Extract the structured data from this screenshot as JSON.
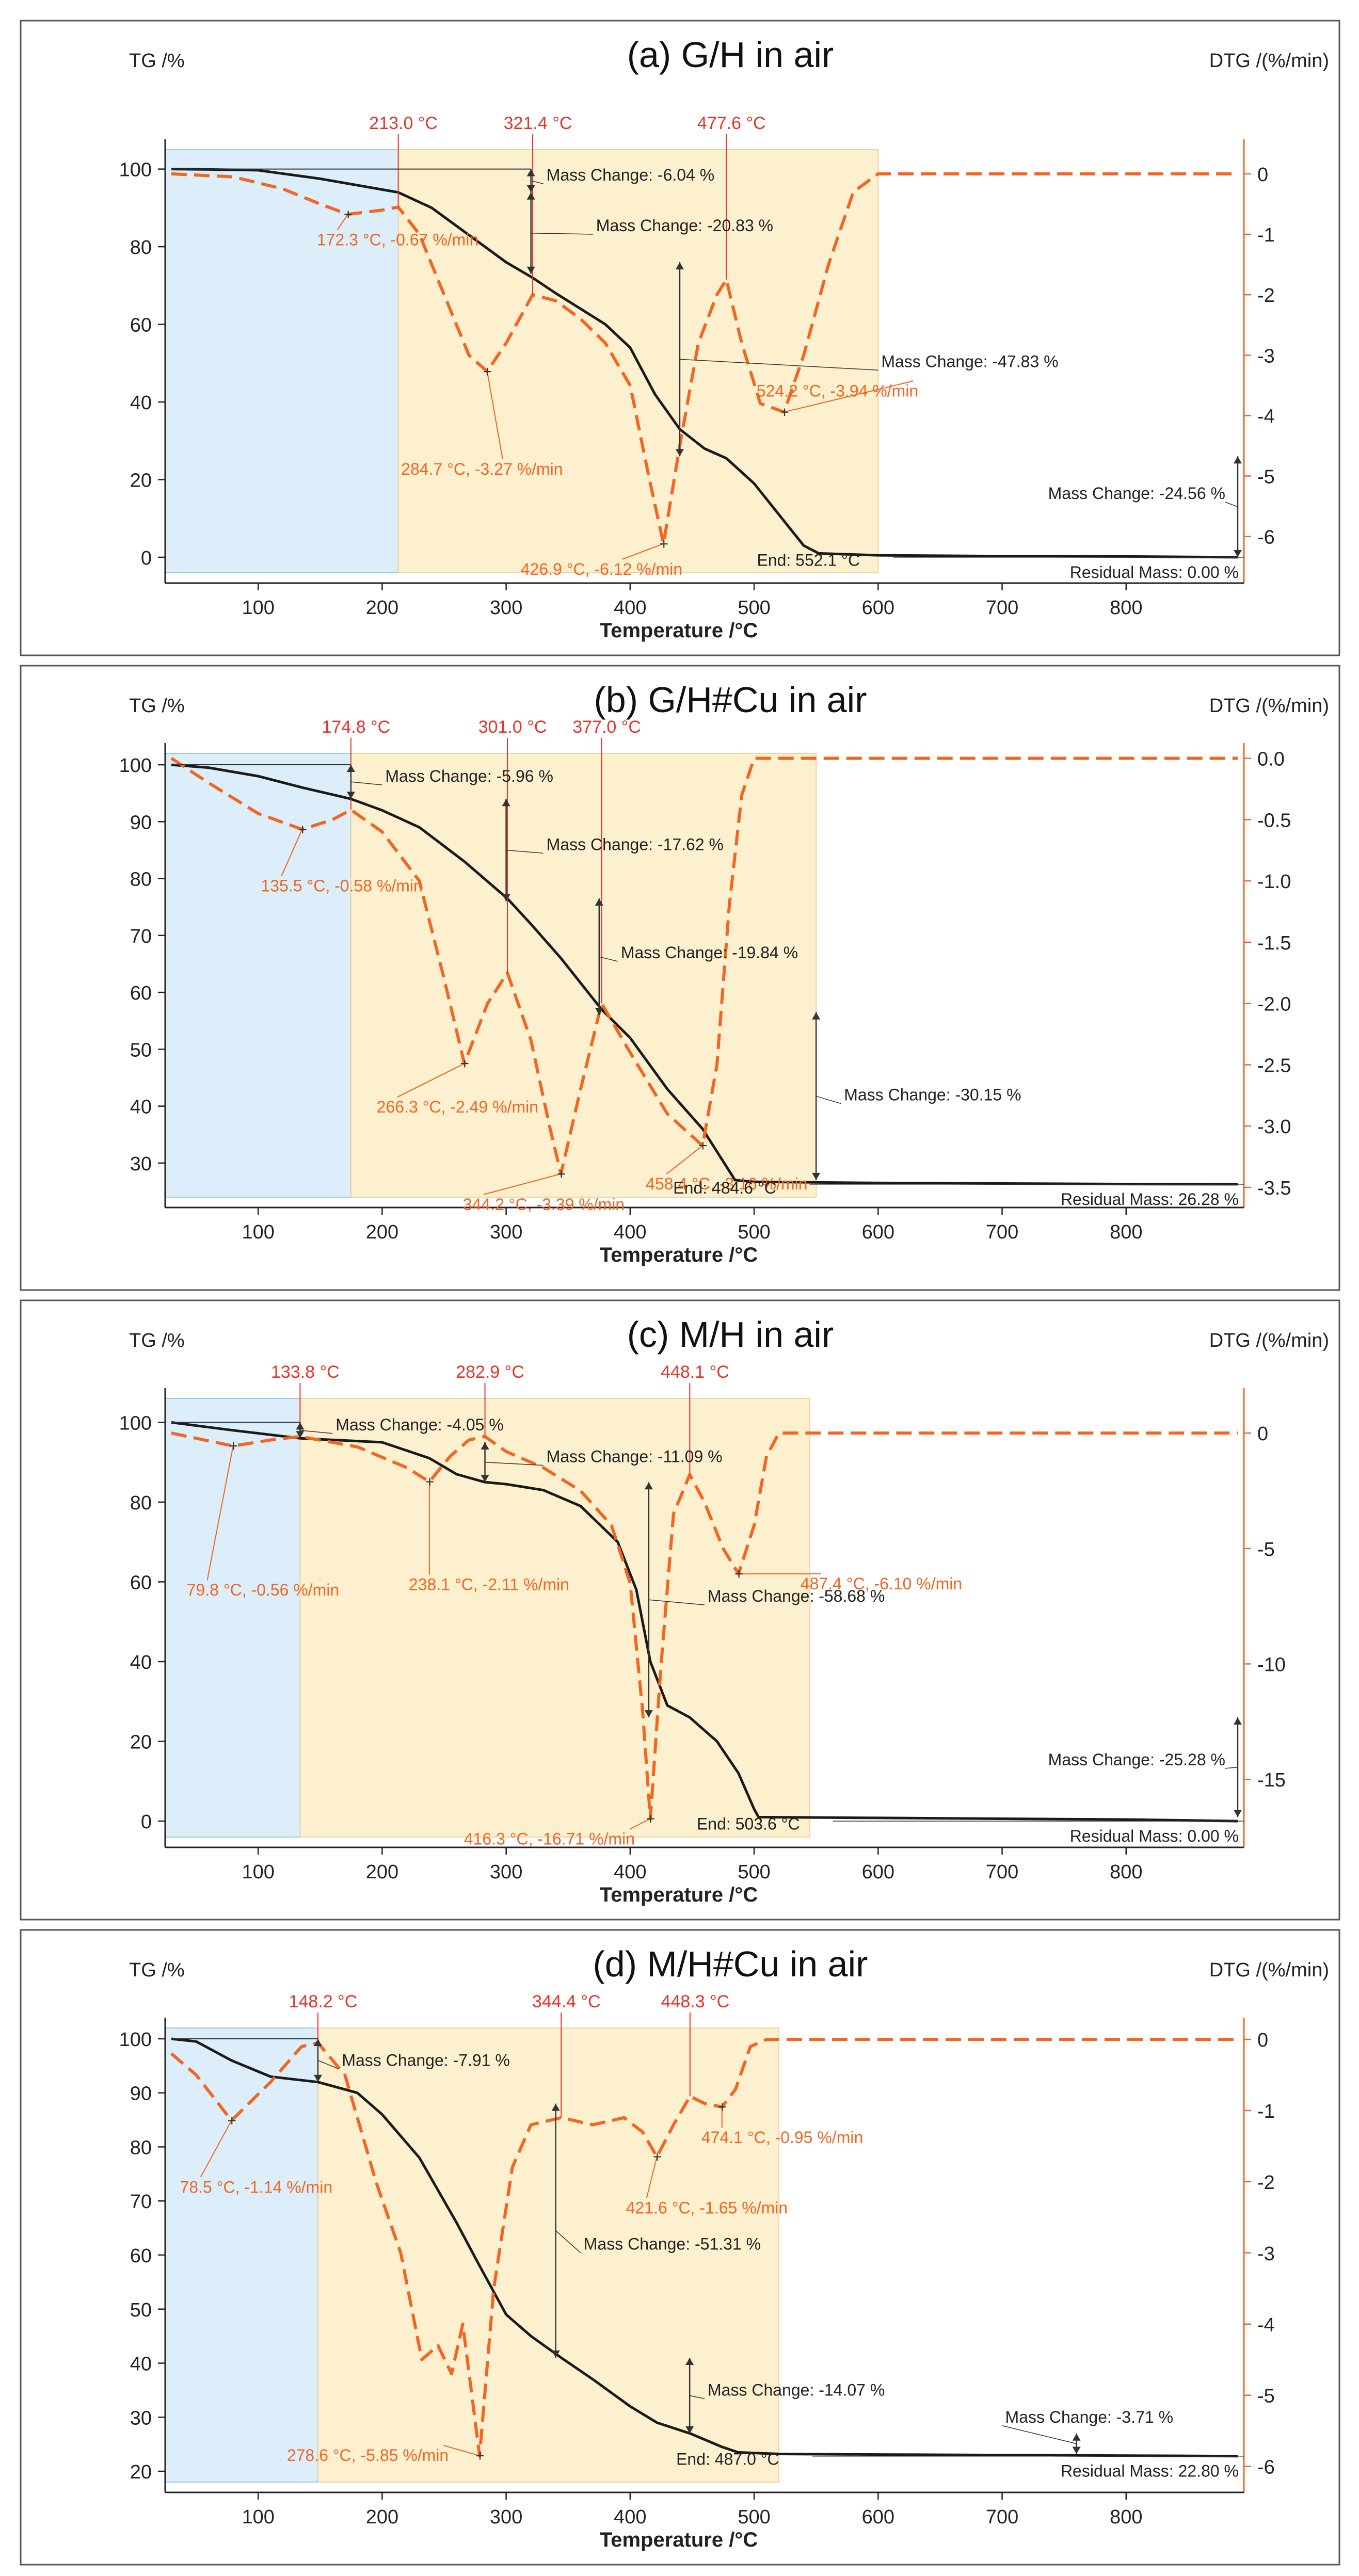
{
  "figure": {
    "axis_title_x": "Temperature /°C",
    "axis_title_tg": "TG /%",
    "axis_title_dtg": "DTG /(%/min)"
  },
  "colors": {
    "tg": "#1a1a1a",
    "dtg": "#f26522",
    "stage1": "#dbeefa",
    "stage2": "#fdf0cf",
    "label": "#f26522",
    "annotation_text": "#222222",
    "frame": "#555555"
  },
  "chart_data": [
    {
      "type": "line",
      "panel": "a",
      "title": "(a) G/H in air",
      "xlabel": "Temperature /°C",
      "ylabel": "TG /%",
      "y2label": "DTG /(%/min)",
      "xlim": [
        25,
        895
      ],
      "ylim": [
        -4,
        105
      ],
      "y2lim": [
        -6.6,
        0.4
      ],
      "xticks": [
        100,
        200,
        300,
        400,
        500,
        600,
        700,
        800
      ],
      "yticks": [
        0,
        20,
        40,
        60,
        80,
        100
      ],
      "y2ticks": [
        0,
        -1,
        -2,
        -3,
        -4,
        -5,
        -6
      ],
      "stages": [
        [
          25,
          213
        ],
        [
          213,
          600
        ]
      ],
      "series": [
        {
          "name": "TG",
          "axis": "left",
          "x": [
            30,
            60,
            100,
            150,
            213,
            240,
            270,
            300,
            321.4,
            340,
            360,
            380,
            400,
            420,
            440,
            460,
            477.6,
            500,
            520,
            540,
            552.1,
            600,
            700,
            800,
            890
          ],
          "y": [
            100,
            99.9,
            99.7,
            97.5,
            94,
            90,
            83,
            76,
            72,
            68,
            64,
            60,
            54,
            42,
            33,
            28,
            25.5,
            19,
            11,
            3,
            1,
            0.5,
            0.3,
            0.2,
            0
          ]
        },
        {
          "name": "DTG",
          "axis": "right",
          "dashed": true,
          "x": [
            30,
            80,
            120,
            150,
            172.3,
            200,
            213,
            230,
            250,
            270,
            284.7,
            300,
            321.4,
            340,
            360,
            380,
            400,
            415,
            426.9,
            440,
            455,
            470,
            477.6,
            490,
            505,
            524.2,
            540,
            560,
            580,
            600,
            700,
            800,
            890
          ],
          "y": [
            0,
            -0.05,
            -0.25,
            -0.5,
            -0.67,
            -0.6,
            -0.55,
            -1.0,
            -2.0,
            -3.0,
            -3.27,
            -2.8,
            -2.0,
            -2.1,
            -2.4,
            -2.8,
            -3.5,
            -5.0,
            -6.12,
            -4.5,
            -2.8,
            -2.0,
            -1.75,
            -2.8,
            -3.8,
            -3.94,
            -3.0,
            -1.5,
            -0.3,
            0,
            0,
            0,
            0
          ]
        }
      ],
      "annotations": {
        "peak_labels": [
          "213.0 °C",
          "321.4 °C",
          "477.6 °C"
        ],
        "dtg_labels": [
          "172.3 °C, -0.67 %/min",
          "284.7 °C, -3.27 %/min",
          "426.9 °C, -6.12 %/min",
          "524.2 °C, -3.94 %/min"
        ],
        "mass_changes": [
          "Mass Change: -6.04 %",
          "Mass Change: -20.83 %",
          "Mass Change: -47.83 %",
          "Mass Change: -24.56 %"
        ],
        "end": "End: 552.1 °C",
        "residual": "Residual Mass: 0.00 %"
      }
    },
    {
      "type": "line",
      "panel": "b",
      "title": "(b) G/H#Cu in air",
      "xlabel": "Temperature /°C",
      "ylabel": "TG /%",
      "y2label": "DTG /(%/min)",
      "xlim": [
        25,
        895
      ],
      "ylim": [
        24,
        102
      ],
      "y2lim": [
        -3.58,
        0.04
      ],
      "xticks": [
        100,
        200,
        300,
        400,
        500,
        600,
        700,
        800
      ],
      "yticks": [
        30,
        40,
        50,
        60,
        70,
        80,
        90,
        100
      ],
      "y2ticks": [
        "0.0",
        "-0.5",
        "-1.0",
        "-1.5",
        "-2.0",
        "-2.5",
        "-3.0",
        "-3.5"
      ],
      "stages": [
        [
          25,
          174.8
        ],
        [
          174.8,
          550
        ]
      ],
      "series": [
        {
          "name": "TG",
          "axis": "left",
          "x": [
            30,
            60,
            100,
            135.5,
            174.8,
            200,
            230,
            266.3,
            301.0,
            320,
            344.2,
            377.0,
            400,
            430,
            458.4,
            484.6,
            500,
            600,
            700,
            800,
            890
          ],
          "y": [
            100,
            99.5,
            98,
            96,
            94,
            92,
            89,
            83,
            76.5,
            72,
            66,
            57,
            52,
            43,
            36,
            27,
            26.7,
            26.5,
            26.4,
            26.3,
            26.28
          ]
        },
        {
          "name": "DTG",
          "axis": "right",
          "dashed": true,
          "x": [
            30,
            60,
            100,
            135.5,
            160,
            174.8,
            200,
            230,
            250,
            266.3,
            285,
            301.0,
            320,
            335,
            344.2,
            360,
            377.0,
            400,
            430,
            458.4,
            470,
            480,
            490,
            500,
            520,
            600,
            700,
            800,
            890
          ],
          "y": [
            0,
            -0.2,
            -0.45,
            -0.58,
            -0.5,
            -0.42,
            -0.6,
            -1.0,
            -1.8,
            -2.49,
            -2.0,
            -1.75,
            -2.3,
            -3.0,
            -3.39,
            -2.7,
            -2.0,
            -2.4,
            -2.9,
            -3.16,
            -2.5,
            -1.2,
            -0.3,
            0,
            0,
            0,
            0,
            0,
            0
          ]
        }
      ],
      "annotations": {
        "peak_labels": [
          "174.8 °C",
          "301.0 °C",
          "377.0 °C"
        ],
        "dtg_labels": [
          "135.5 °C, -0.58 %/min",
          "266.3 °C, -2.49 %/min",
          "344.2 °C, -3.39 %/min",
          "458.4 °C, -3.16 %/min"
        ],
        "mass_changes": [
          "Mass Change: -5.96 %",
          "Mass Change: -17.62 %",
          "Mass Change: -19.84 %",
          "Mass Change: -30.15 %"
        ],
        "end": "End: 484.6 °C",
        "residual": "Residual Mass: 26.28 %"
      }
    },
    {
      "type": "line",
      "panel": "c",
      "title": "(c) M/H in air",
      "xlabel": "Temperature /°C",
      "ylabel": "TG /%",
      "y2label": "DTG /(%/min)",
      "xlim": [
        25,
        895
      ],
      "ylim": [
        -4,
        106
      ],
      "y2lim": [
        -17.5,
        1.5
      ],
      "xticks": [
        100,
        200,
        300,
        400,
        500,
        600,
        700,
        800
      ],
      "yticks": [
        0,
        20,
        40,
        60,
        80,
        100
      ],
      "y2ticks": [
        0,
        -5,
        -10,
        -15
      ],
      "stages": [
        [
          25,
          133.8
        ],
        [
          133.8,
          545
        ]
      ],
      "series": [
        {
          "name": "TG",
          "axis": "left",
          "x": [
            30,
            79.8,
            133.8,
            200,
            238.1,
            260,
            282.9,
            300,
            330,
            360,
            390,
            405,
            416.3,
            430,
            448.1,
            470,
            487.4,
            500,
            503.6,
            600,
            700,
            800,
            890
          ],
          "y": [
            100,
            98,
            96,
            95,
            91,
            87,
            85,
            84.5,
            83,
            79,
            70,
            58,
            40,
            29,
            26,
            20,
            12,
            3,
            1,
            0.8,
            0.6,
            0.4,
            0
          ]
        },
        {
          "name": "DTG",
          "axis": "right",
          "dashed": true,
          "x": [
            30,
            79.8,
            110,
            133.8,
            180,
            220,
            238.1,
            255,
            270,
            282.9,
            300,
            330,
            360,
            385,
            400,
            410,
            416.3,
            425,
            435,
            448.1,
            460,
            475,
            487.4,
            500,
            510,
            520,
            560,
            600,
            700,
            800,
            890
          ],
          "y": [
            0,
            -0.56,
            -0.3,
            -0.15,
            -0.6,
            -1.5,
            -2.11,
            -1.0,
            -0.3,
            -0.15,
            -0.8,
            -1.5,
            -2.5,
            -4.0,
            -6.5,
            -12.0,
            -16.71,
            -10.0,
            -3.5,
            -1.8,
            -3.0,
            -5.0,
            -6.1,
            -4.0,
            -1.0,
            0,
            0,
            0,
            0,
            0,
            0
          ]
        }
      ],
      "annotations": {
        "peak_labels": [
          "133.8 °C",
          "282.9 °C",
          "448.1 °C"
        ],
        "dtg_labels": [
          "79.8 °C, -0.56 %/min",
          "238.1 °C, -2.11 %/min",
          "416.3 °C, -16.71 %/min",
          "487.4 °C, -6.10 %/min"
        ],
        "mass_changes": [
          "Mass Change: -4.05 %",
          "Mass Change: -11.09 %",
          "Mass Change: -58.68 %",
          "Mass Change: -25.28 %"
        ],
        "end": "End: 503.6 °C",
        "residual": "Residual Mass: 0.00 %"
      }
    },
    {
      "type": "line",
      "panel": "d",
      "title": "(d) M/H#Cu in air",
      "xlabel": "Temperature /°C",
      "ylabel": "TG /%",
      "y2label": "DTG /(%/min)",
      "xlim": [
        25,
        895
      ],
      "ylim": [
        18,
        102
      ],
      "y2lim": [
        -6.22,
        0.16
      ],
      "xticks": [
        100,
        200,
        300,
        400,
        500,
        600,
        700,
        800
      ],
      "yticks": [
        20,
        30,
        40,
        50,
        60,
        70,
        80,
        90,
        100
      ],
      "y2ticks": [
        0,
        -1,
        -2,
        -3,
        -4,
        -5,
        -6
      ],
      "stages": [
        [
          25,
          148.2
        ],
        [
          148.2,
          520
        ]
      ],
      "series": [
        {
          "name": "TG",
          "axis": "left",
          "x": [
            30,
            50,
            78.5,
            110,
            148.2,
            180,
            200,
            230,
            260,
            278.6,
            300,
            320,
            344.4,
            370,
            400,
            421.6,
            448.3,
            474.1,
            487.0,
            520,
            600,
            700,
            800,
            890
          ],
          "y": [
            100,
            99.5,
            96,
            93,
            92,
            90,
            86,
            78,
            66,
            58,
            49,
            45,
            41,
            37,
            32,
            29,
            27,
            24.5,
            23.5,
            23.2,
            23.1,
            23.0,
            22.9,
            22.8
          ]
        },
        {
          "name": "DTG",
          "axis": "right",
          "dashed": true,
          "x": [
            30,
            50,
            78.5,
            110,
            135,
            148.2,
            170,
            195,
            215,
            232,
            245,
            256,
            265,
            278.6,
            290,
            305,
            320,
            344.4,
            370,
            395,
            410,
            421.6,
            435,
            448.3,
            460,
            474.1,
            485,
            497,
            510,
            600,
            700,
            800,
            890
          ],
          "y": [
            -0.2,
            -0.5,
            -1.14,
            -0.6,
            -0.1,
            -0.05,
            -0.5,
            -2.0,
            -3.0,
            -4.5,
            -4.3,
            -4.7,
            -4.0,
            -5.85,
            -3.5,
            -1.8,
            -1.2,
            -1.1,
            -1.2,
            -1.1,
            -1.3,
            -1.65,
            -1.2,
            -0.8,
            -0.9,
            -0.95,
            -0.7,
            -0.1,
            0,
            0,
            0,
            0,
            0
          ]
        }
      ],
      "annotations": {
        "peak_labels": [
          "148.2 °C",
          "344.4 °C",
          "448.3 °C"
        ],
        "dtg_labels": [
          "78.5 °C, -1.14 %/min",
          "278.6 °C, -5.85 %/min",
          "421.6 °C, -1.65 %/min",
          "474.1 °C, -0.95 %/min"
        ],
        "mass_changes": [
          "Mass Change: -7.91 %",
          "Mass Change: -51.31 %",
          "Mass Change: -14.07 %",
          "Mass Change: -3.71 %"
        ],
        "end": "End: 487.0 °C",
        "residual": "Residual Mass: 22.80 %"
      }
    }
  ]
}
